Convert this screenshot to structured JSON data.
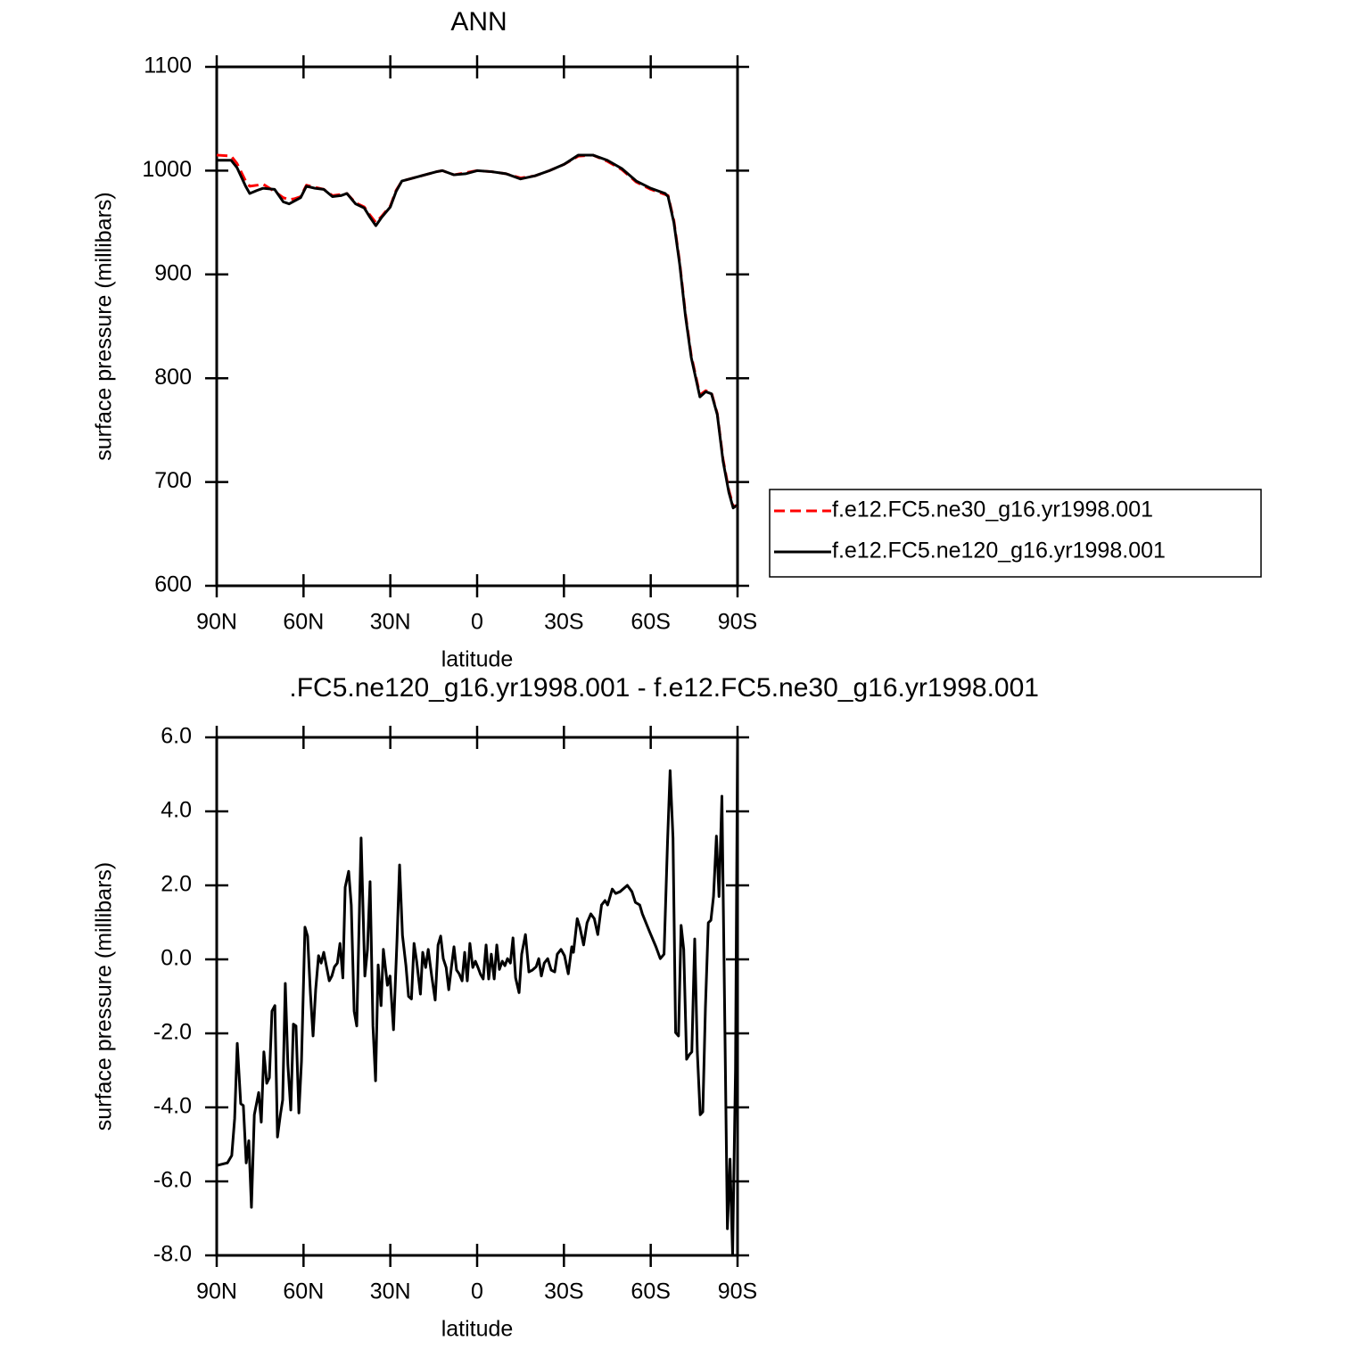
{
  "chart_data": [
    {
      "type": "line",
      "title": "ANN",
      "x_label": "latitude",
      "y_label": "surface pressure (millibars)",
      "x": [
        90,
        85,
        83,
        80,
        78.6,
        76,
        74,
        70,
        67,
        65,
        63,
        61,
        59,
        56,
        53,
        50,
        47,
        45,
        42,
        39,
        37,
        35,
        33,
        30,
        28,
        26,
        22,
        18,
        14,
        12,
        8,
        4,
        0,
        -5,
        -10,
        -15,
        -20,
        -25,
        -30,
        -35,
        -40,
        -45,
        -50,
        -55,
        -60,
        -65,
        -66,
        -68,
        -70,
        -72,
        -74,
        -77,
        -79,
        -81,
        -83,
        -85,
        -87,
        -88.5,
        -90
      ],
      "series": [
        {
          "name": "f.e12.FC5.ne30_g16.yr1998.001",
          "color": "#ff0000",
          "line_style": "dashed",
          "values": [
            1015,
            1014,
            1007,
            990,
            985,
            986,
            987,
            980,
            974,
            972,
            973,
            975,
            986,
            984,
            982,
            976,
            977,
            978,
            969,
            965,
            957,
            950,
            956,
            966,
            981,
            990,
            993,
            996,
            999,
            1000,
            996,
            998,
            1000,
            999,
            997,
            993,
            995,
            1000,
            1006,
            1014,
            1015,
            1009,
            1001,
            989,
            982,
            977,
            976,
            952,
            912,
            862,
            822,
            784,
            788,
            786,
            766,
            722,
            692,
            677,
            677
          ]
        },
        {
          "name": "f.e12.FC5.ne120_g16.yr1998.001",
          "color": "#000000",
          "line_style": "solid",
          "values": [
            1010,
            1010,
            1003,
            985,
            978,
            981,
            983,
            982,
            970,
            968,
            971,
            974,
            985,
            983,
            982,
            975,
            976,
            978,
            968,
            964,
            955,
            947,
            955,
            965,
            980,
            990,
            993,
            996,
            999,
            1000,
            996,
            997,
            1000,
            999,
            997,
            992,
            995,
            1000,
            1006,
            1015,
            1015,
            1010,
            1002,
            990,
            983,
            978,
            975,
            950,
            910,
            860,
            820,
            782,
            787,
            785,
            765,
            720,
            690,
            675,
            678
          ]
        }
      ],
      "xlim": [
        90,
        -90
      ],
      "xticks": [
        {
          "value": 90,
          "label": "90N"
        },
        {
          "value": 60,
          "label": "60N"
        },
        {
          "value": 30,
          "label": "30N"
        },
        0,
        {
          "value": -30,
          "label": "30S"
        },
        {
          "value": -60,
          "label": "60S"
        },
        {
          "value": -90,
          "label": "90S"
        }
      ],
      "ylim": [
        600,
        1100
      ],
      "yticks": [
        600,
        700,
        800,
        900,
        1000,
        1100
      ],
      "grid": false,
      "legend": "right"
    },
    {
      "type": "line",
      "title": ".FC5.ne120_g16.yr1998.001 - f.e12.FC5.ne30_g16.yr1998.001",
      "x_label": "latitude",
      "y_label": "surface pressure (millibars)",
      "x": [
        90,
        86.3,
        84.8,
        83.8,
        82.9,
        81.7,
        80.8,
        79.8,
        78.9,
        78,
        77,
        75.5,
        74.6,
        73.7,
        72.7,
        71.8,
        70.9,
        69.9,
        69,
        68,
        67.2,
        66.3,
        65.4,
        64.4,
        63.5,
        62.6,
        61.6,
        60.7,
        59.5,
        58.6,
        57.6,
        56.7,
        55.8,
        54.8,
        53.9,
        53,
        52,
        51.1,
        50.2,
        49.3,
        48.3,
        47.4,
        46.4,
        45.6,
        44.4,
        43.5,
        42.5,
        41.6,
        40.1,
        38.8,
        37.9,
        37,
        36,
        35.1,
        34.2,
        33.2,
        32.4,
        31,
        30.1,
        28.9,
        27.7,
        26.8,
        25.8,
        24.6,
        23.7,
        22.7,
        21.8,
        20.9,
        19.6,
        18.8,
        17.8,
        16.9,
        15.7,
        14.5,
        13.5,
        12.6,
        11.7,
        10.7,
        9.8,
        8.9,
        8,
        7.1,
        6.2,
        5.2,
        4.3,
        3.4,
        2.5,
        1.5,
        0.6,
        -0.3,
        -1.2,
        -2.1,
        -3.1,
        -4,
        -4.9,
        -5.9,
        -6.8,
        -7.7,
        -8.7,
        -9.6,
        -10.5,
        -11.5,
        -12.4,
        -13.3,
        -14.5,
        -15.4,
        -16.7,
        -17.9,
        -19.1,
        -20.4,
        -21.3,
        -22.2,
        -23.2,
        -24.4,
        -25.6,
        -26.8,
        -27.7,
        -29,
        -30.2,
        -31.5,
        -32.7,
        -33.3,
        -34.6,
        -35.5,
        -36.8,
        -38,
        -39.3,
        -40.5,
        -41.7,
        -43,
        -44.2,
        -45.1,
        -46.7,
        -47.9,
        -49.4,
        -51.9,
        -53.5,
        -54.7,
        -56.2,
        -57.1,
        -59.6,
        -61.8,
        -63.3,
        -64.6,
        -65.8,
        -66.7,
        -67.7,
        -68.6,
        -69.6,
        -70.5,
        -71.4,
        -72.4,
        -73.3,
        -74.2,
        -75.2,
        -76.1,
        -77.1,
        -78,
        -78.9,
        -79.9,
        -80.8,
        -81.7,
        -82.7,
        -83.6,
        -84.6,
        -85.5,
        -86.5,
        -87.4,
        -88.3,
        -89.3,
        -90
      ],
      "values": [
        -5.57,
        -5.5,
        -5.3,
        -4.3,
        -2.27,
        -3.9,
        -3.95,
        -5.5,
        -4.9,
        -6.7,
        -4.2,
        -3.6,
        -4.4,
        -2.5,
        -3.35,
        -3.2,
        -1.4,
        -1.25,
        -4.8,
        -4.2,
        -3.8,
        -0.65,
        -2.85,
        -4.07,
        -1.75,
        -1.8,
        -4.15,
        -2.75,
        0.87,
        0.63,
        -0.93,
        -2.07,
        -0.82,
        0.1,
        -0.1,
        0.19,
        -0.22,
        -0.58,
        -0.45,
        -0.2,
        -0.1,
        0.43,
        -0.5,
        1.95,
        2.38,
        1.47,
        -1.4,
        -1.8,
        3.28,
        -0.45,
        0.27,
        2.1,
        -1.8,
        -3.28,
        -0.15,
        -1.25,
        0.27,
        -0.7,
        -0.45,
        -1.9,
        0.5,
        2.55,
        0.65,
        -0.17,
        -1,
        -1.07,
        0.43,
        -0.05,
        -0.94,
        0.19,
        -0.22,
        0.27,
        -0.45,
        -1.1,
        0.39,
        0.63,
        0.02,
        -0.22,
        -0.82,
        -0.22,
        0.34,
        -0.29,
        -0.39,
        -0.58,
        0.19,
        -0.58,
        0.43,
        -0.22,
        -0.05,
        -0.22,
        -0.41,
        -0.53,
        0.39,
        -0.53,
        0.14,
        -0.53,
        0.39,
        -0.27,
        -0.05,
        -0.17,
        0.02,
        -0.1,
        0.58,
        -0.5,
        -0.9,
        0.14,
        0.67,
        -0.34,
        -0.29,
        -0.2,
        0.02,
        -0.45,
        -0.1,
        0.02,
        -0.29,
        -0.34,
        0.14,
        0.27,
        0.1,
        -0.39,
        0.34,
        0.19,
        1.1,
        0.87,
        0.39,
        0.99,
        1.23,
        1.1,
        0.67,
        1.47,
        1.59,
        1.47,
        1.9,
        1.78,
        1.83,
        2,
        1.83,
        1.54,
        1.47,
        1.23,
        0.75,
        0.34,
        0.02,
        0.14,
        3.16,
        5.1,
        3.28,
        -1.98,
        -2.07,
        0.92,
        0.27,
        -2.7,
        -2.58,
        -2.5,
        0.55,
        -2.5,
        -4.2,
        -4.12,
        -1.3,
        0.99,
        1.06,
        1.7,
        3.33,
        1.7,
        4.41,
        -1.06,
        -7.28,
        -5.4,
        -8,
        -2.99,
        5.93
      ],
      "color": "#000000",
      "line_style": "solid",
      "xlim": [
        90,
        -90
      ],
      "xticks": [
        {
          "value": 90,
          "label": "90N"
        },
        {
          "value": 60,
          "label": "60N"
        },
        {
          "value": 30,
          "label": "30N"
        },
        0,
        {
          "value": -30,
          "label": "30S"
        },
        {
          "value": -60,
          "label": "60S"
        },
        {
          "value": -90,
          "label": "90S"
        }
      ],
      "ylim": [
        -8,
        6
      ],
      "yticks": [
        {
          "value": -8,
          "label": "-8.0"
        },
        {
          "value": -6,
          "label": "-6.0"
        },
        {
          "value": -4,
          "label": "-4.0"
        },
        {
          "value": -2,
          "label": "-2.0"
        },
        {
          "value": 0,
          "label": "0.0"
        },
        {
          "value": 2,
          "label": "2.0"
        },
        {
          "value": 4,
          "label": "4.0"
        },
        {
          "value": 6,
          "label": "6.0"
        }
      ],
      "grid": false
    }
  ]
}
